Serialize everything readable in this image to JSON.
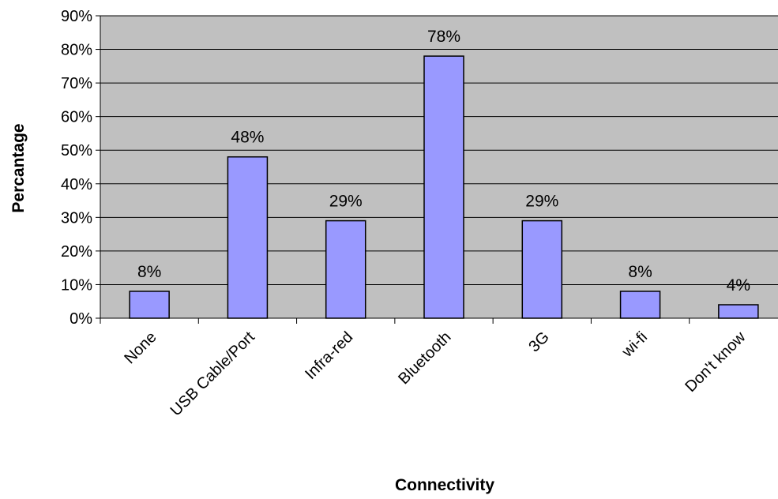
{
  "chart_data": {
    "type": "bar",
    "categories": [
      "None",
      "USB Cable/Port",
      "Infra-red",
      "Bluetooth",
      "3G",
      "wi-fi",
      "Don't know"
    ],
    "values": [
      8,
      48,
      29,
      78,
      29,
      8,
      4
    ],
    "data_labels": [
      "8%",
      "48%",
      "29%",
      "78%",
      "29%",
      "8%",
      "4%"
    ],
    "xlabel": "Connectivity",
    "ylabel": "Percantage",
    "ylim": [
      0,
      90
    ],
    "y_ticks": [
      0,
      10,
      20,
      30,
      40,
      50,
      60,
      70,
      80,
      90
    ],
    "y_tick_labels": [
      "0%",
      "10%",
      "20%",
      "30%",
      "40%",
      "50%",
      "60%",
      "70%",
      "80%",
      "90%"
    ],
    "grid": true,
    "legend": "none",
    "colors": {
      "bar_fill": "#9999ff",
      "bar_stroke": "#000000",
      "plot_background": "#c0c0c0",
      "gridline": "#000000"
    }
  }
}
